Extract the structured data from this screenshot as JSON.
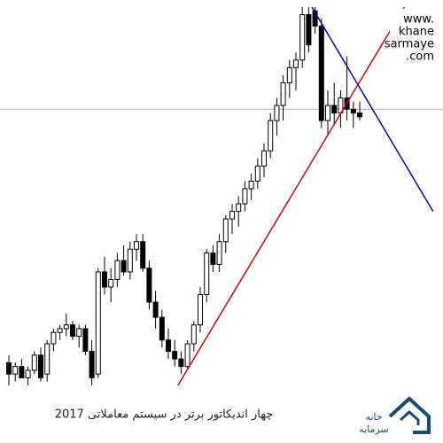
{
  "chart_data": {
    "type": "candlestick",
    "watermark": [
      "www.",
      "khane",
      "sarmaye",
      ".com"
    ],
    "caption": "چهار اندیکاتور برتر در سیستم معاملاتی 2017",
    "logo_text": [
      "خانه",
      "سرمایه"
    ],
    "ylim": [
      0,
      100
    ],
    "up_color": "#ffffff",
    "down_color": "#000000",
    "edge_color": "#000000",
    "open": [
      6,
      3,
      5,
      2,
      4,
      8,
      3,
      11,
      14,
      15,
      16,
      13,
      15,
      9,
      3,
      30,
      26,
      28,
      33,
      30,
      36,
      38,
      31,
      22,
      18,
      12,
      9,
      7,
      5,
      11,
      16,
      24,
      35,
      32,
      38,
      44,
      46,
      48,
      52,
      54,
      58,
      62,
      70,
      74,
      80,
      84,
      86,
      98,
      99,
      95,
      70,
      74,
      72,
      76,
      73,
      72
    ],
    "high": [
      8,
      6,
      7,
      5,
      9,
      10,
      12,
      15,
      16,
      19,
      17,
      16,
      16,
      12,
      31,
      34,
      31,
      35,
      37,
      38,
      40,
      40,
      33,
      25,
      20,
      15,
      12,
      9,
      12,
      17,
      26,
      36,
      37,
      40,
      45,
      48,
      50,
      54,
      56,
      60,
      64,
      72,
      76,
      82,
      86,
      88,
      100,
      100,
      100,
      97,
      78,
      80,
      78,
      87,
      75,
      75
    ],
    "low": [
      0,
      1,
      2,
      0,
      3,
      1,
      1,
      9,
      12,
      13,
      12,
      10,
      8,
      0,
      2,
      24,
      22,
      26,
      29,
      28,
      33,
      30,
      20,
      15,
      10,
      7,
      5,
      3,
      4,
      9,
      14,
      22,
      30,
      30,
      35,
      40,
      42,
      46,
      49,
      52,
      55,
      60,
      66,
      70,
      76,
      78,
      84,
      88,
      93,
      68,
      66,
      69,
      68,
      70,
      68,
      70
    ],
    "close": [
      3,
      5,
      2,
      4,
      8,
      2,
      11,
      14,
      15,
      16,
      13,
      15,
      9,
      2,
      30,
      26,
      28,
      33,
      30,
      36,
      38,
      31,
      22,
      18,
      12,
      9,
      7,
      5,
      11,
      16,
      24,
      35,
      32,
      38,
      44,
      46,
      48,
      52,
      54,
      58,
      62,
      70,
      74,
      80,
      84,
      86,
      98,
      90,
      95,
      70,
      74,
      72,
      76,
      73,
      72,
      71
    ],
    "hline": {
      "value": 73,
      "color": "#b0b0b0"
    },
    "trendlines": [
      {
        "color": "#0000cc",
        "start": [
          47.5,
          100
        ],
        "end": [
          66.5,
          46
        ]
      },
      {
        "color": "#dd0000",
        "start": [
          26.5,
          0
        ],
        "end": [
          62,
          100
        ]
      }
    ]
  }
}
